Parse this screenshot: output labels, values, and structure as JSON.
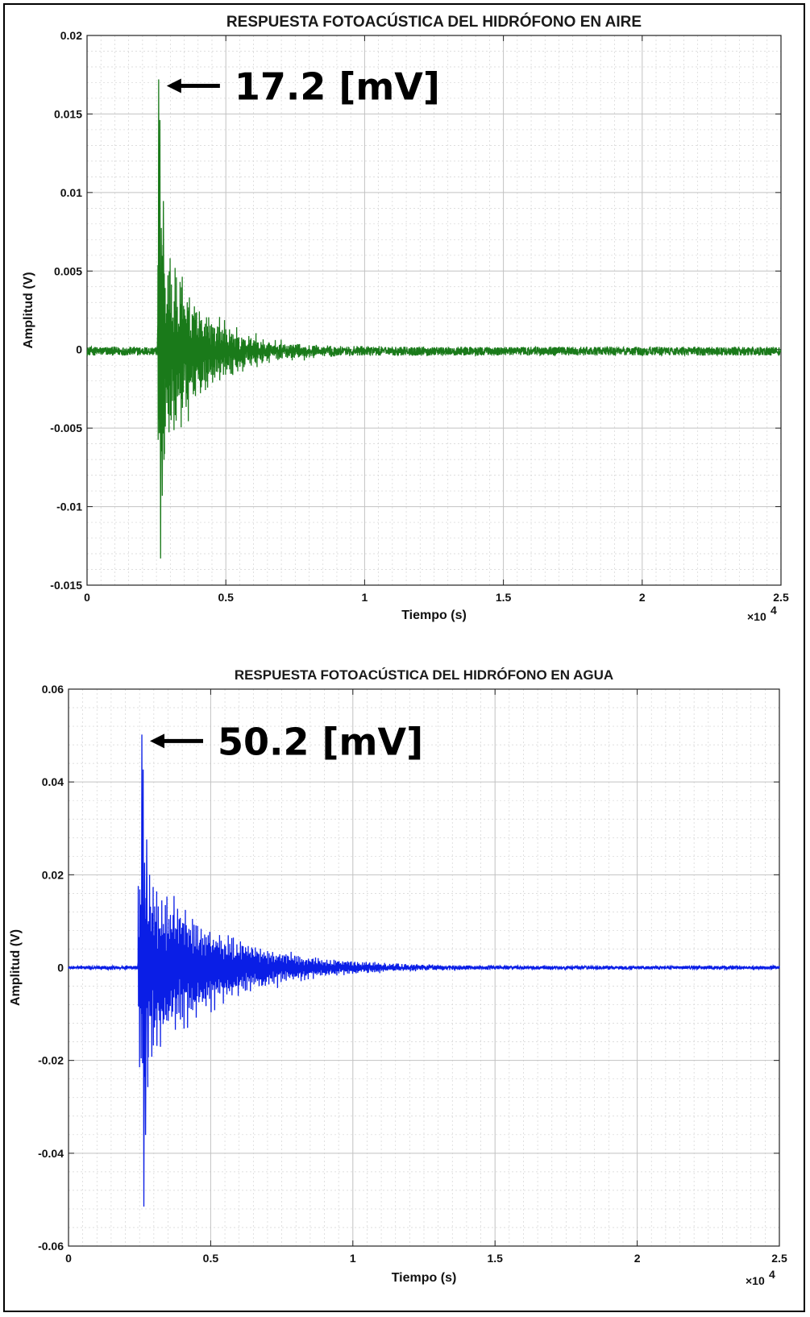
{
  "chart_data": [
    {
      "type": "line",
      "title": "RESPUESTA FOTOACÚSTICA DEL HIDRÓFONO EN AIRE",
      "xlabel": "Tiempo (s)",
      "ylabel": "Amplitud  (V)",
      "x_exponent_label": "×10",
      "x_exponent_power": "4",
      "xlim": [
        0,
        25000
      ],
      "ylim": [
        -0.015,
        0.02
      ],
      "xticks": [
        0,
        5000,
        10000,
        15000,
        20000,
        25000
      ],
      "xtick_labels": [
        "0",
        "0.5",
        "1",
        "1.5",
        "2",
        "2.5"
      ],
      "yticks": [
        -0.015,
        -0.01,
        -0.005,
        0,
        0.005,
        0.01,
        0.015,
        0.02
      ],
      "ytick_labels": [
        "-0.015",
        "-0.01",
        "-0.005",
        "0",
        "0.005",
        "0.01",
        "0.015",
        "0.02"
      ],
      "grid": true,
      "minor_grid": true,
      "color": "#1a7a1a",
      "signal": {
        "onset": 2550,
        "peak_time": 2580,
        "peak_value": 0.0172,
        "min_value": -0.0133,
        "decay_time": 1600,
        "frequency_cycles_per_unit": 0.0125,
        "noise_level": 0.00028,
        "baseline": -0.0001
      },
      "annotation": {
        "text": "17.2 [mV]",
        "x": 2580,
        "y": 0.0172
      }
    },
    {
      "type": "line",
      "title": "RESPUESTA FOTOACÚSTICA DEL HIDRÓFONO EN AGUA",
      "xlabel": "Tiempo (s)",
      "ylabel": "Amplitud  (V)",
      "x_exponent_label": "×10",
      "x_exponent_power": "4",
      "xlim": [
        0,
        25000
      ],
      "ylim": [
        -0.06,
        0.06
      ],
      "xticks": [
        0,
        5000,
        10000,
        15000,
        20000,
        25000
      ],
      "xtick_labels": [
        "0",
        "0.5",
        "1",
        "1.5",
        "2",
        "2.5"
      ],
      "yticks": [
        -0.06,
        -0.04,
        -0.02,
        0,
        0.02,
        0.04,
        0.06
      ],
      "ytick_labels": [
        "-0.06",
        "-0.04",
        "-0.02",
        "0",
        "0.02",
        "0.04",
        "0.06"
      ],
      "grid": true,
      "minor_grid": true,
      "color": "#0a1ee6",
      "signal": {
        "onset": 2450,
        "peak_time": 2580,
        "peak_value": 0.0502,
        "min_value": -0.0515,
        "decay_time": 2600,
        "frequency_cycles_per_unit": 0.0105,
        "noise_level": 0.00035,
        "baseline": 0.0
      },
      "annotation": {
        "text": "50.2 [mV]",
        "x": 2580,
        "y": 0.0502
      }
    }
  ]
}
